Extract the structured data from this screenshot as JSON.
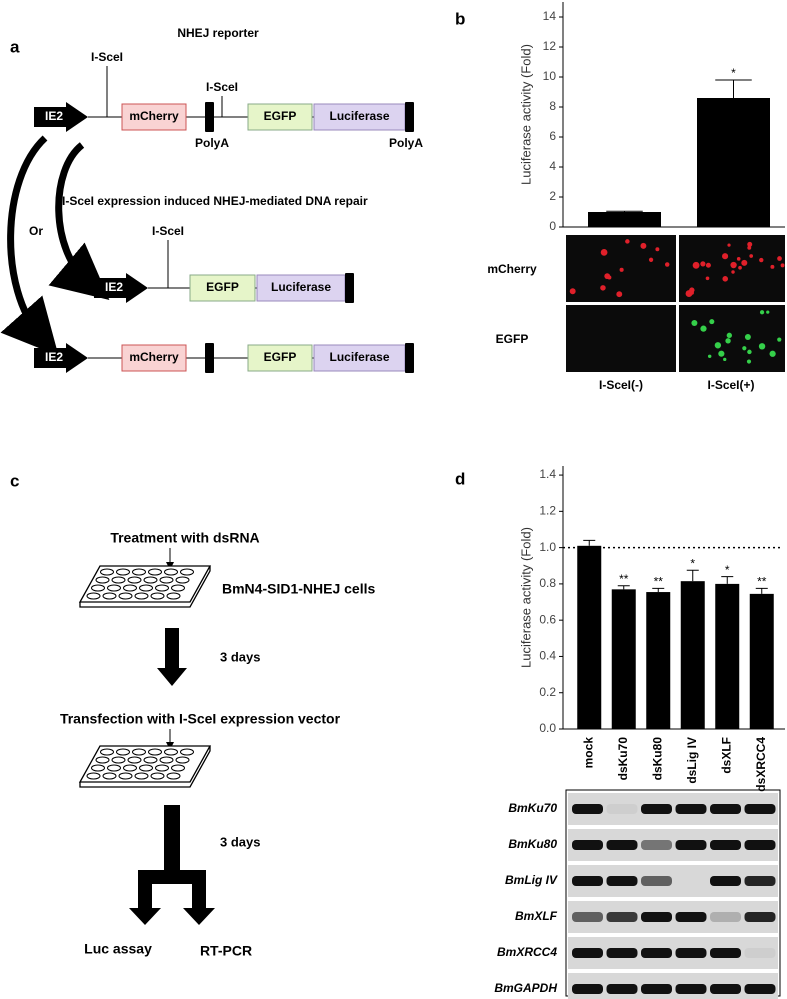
{
  "panel_labels": [
    "a",
    "b",
    "c",
    "d"
  ],
  "reporter": {
    "title": "NHEJ reporter",
    "site_label": "I-SceI",
    "promoter": "IE2",
    "genes": [
      "mCherry",
      "EGFP",
      "Luciferase"
    ],
    "polya": "PolyA",
    "or": "Or",
    "repair_text": "I-SceI expression induced NHEJ-mediated DNA repair"
  },
  "microscopy": {
    "rows": [
      "mCherry",
      "EGFP"
    ]
  },
  "workflow": {
    "steps": [
      "Treatment with dsRNA",
      "Transfection with I-SceI expression vector"
    ],
    "cells": "BmN4-SID1-NHEJ cells",
    "interval": "3 days",
    "outputs": [
      "Luc assay",
      "RT-PCR"
    ]
  },
  "gel": {
    "genes": [
      "BmKu70",
      "BmKu80",
      "BmLig IV",
      "BmXLF",
      "BmXRCC4",
      "BmGAPDH"
    ]
  },
  "chart_data": [
    {
      "type": "bar",
      "ylabel": "Luciferase activity (Fold)",
      "categories": [
        "I-SceI(-)",
        "I-SceI(+)"
      ],
      "values": [
        1.0,
        8.6
      ],
      "errors": [
        0.05,
        1.2
      ],
      "significance": [
        null,
        "*"
      ],
      "color": "#000000",
      "ylim": [
        0,
        15
      ],
      "yticks": [
        0,
        2,
        4,
        6,
        8,
        10,
        12,
        14
      ]
    },
    {
      "type": "bar",
      "ylabel": "Luciferase activity (Fold)",
      "categories": [
        "mock",
        "dsKu70",
        "dsKu80",
        "dsLig IV",
        "dsXLF",
        "dsXRCC4"
      ],
      "values": [
        1.01,
        0.77,
        0.755,
        0.815,
        0.8,
        0.745
      ],
      "errors": [
        0.03,
        0.02,
        0.02,
        0.06,
        0.04,
        0.03
      ],
      "significance": [
        null,
        "**",
        "**",
        "*",
        "*",
        "**"
      ],
      "reference_line": 1.0,
      "color": "#000000",
      "ylim": [
        0,
        1.45
      ],
      "yticks": [
        {
          "value": 0,
          "label": "0.0"
        },
        0.2,
        0.4,
        0.6,
        0.8,
        {
          "value": 1,
          "label": "1.0"
        },
        1.2,
        0.0,
        1.4
      ]
    }
  ]
}
